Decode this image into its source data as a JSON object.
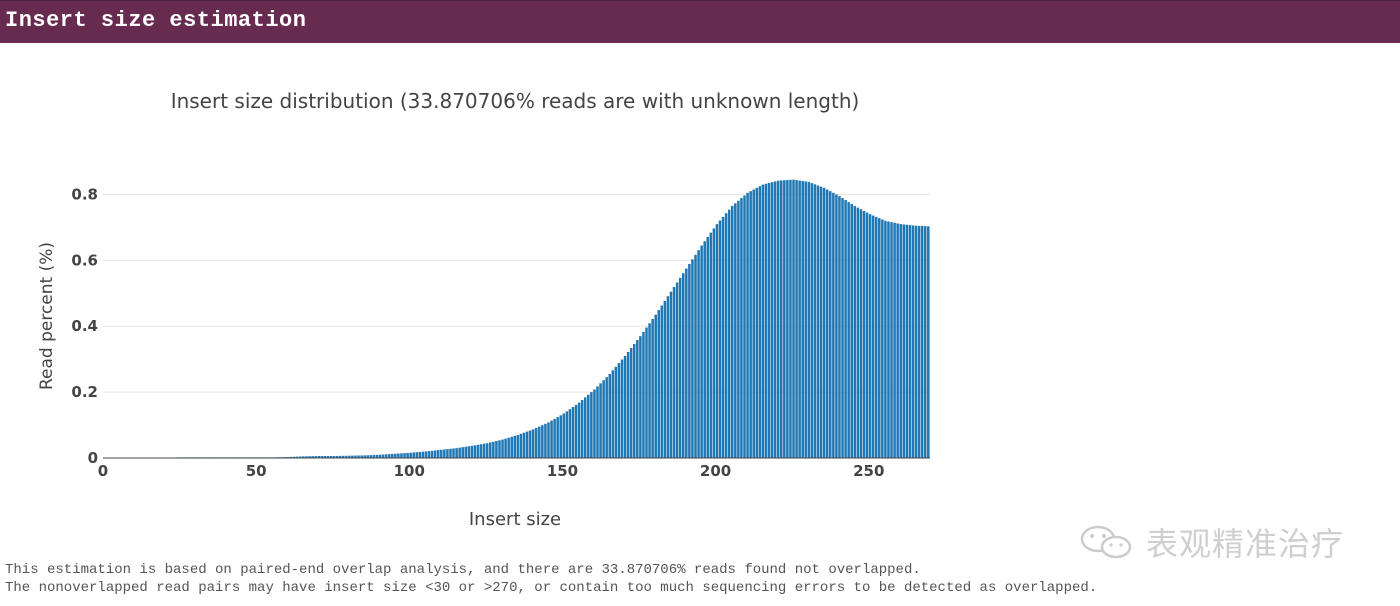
{
  "header": {
    "title": "Insert size estimation"
  },
  "chart_data": {
    "type": "bar",
    "title": "Insert size distribution (33.870706% reads are with unknown length)",
    "xlabel": "Insert size",
    "ylabel": "Read percent (%)",
    "xlim": [
      0,
      270
    ],
    "ylim": [
      0,
      0.85
    ],
    "xticks": [
      0,
      50,
      100,
      150,
      200,
      250
    ],
    "yticks": [
      0,
      0.2,
      0.4,
      0.6,
      0.8
    ],
    "ytick_labels": [
      "0",
      "0.2",
      "0.4",
      "0.6",
      "0.8"
    ],
    "grid": true,
    "bar_color": "#1f77b4",
    "series": [
      {
        "x_start": 0,
        "x_step": 5,
        "values": [
          0.001,
          0.001,
          0.001,
          0.001,
          0.001,
          0.002,
          0.002,
          0.002,
          0.002,
          0.002,
          0.002,
          0.002,
          0.003,
          0.005,
          0.006,
          0.006,
          0.007,
          0.008,
          0.01,
          0.013,
          0.016,
          0.02,
          0.025,
          0.03,
          0.037,
          0.045,
          0.056,
          0.07,
          0.087,
          0.108,
          0.135,
          0.168,
          0.208,
          0.255,
          0.31,
          0.37,
          0.435,
          0.505,
          0.575,
          0.645,
          0.71,
          0.765,
          0.805,
          0.83,
          0.842,
          0.845,
          0.838,
          0.82,
          0.795,
          0.765,
          0.74,
          0.72,
          0.71,
          0.705,
          0.703
        ]
      }
    ]
  },
  "footnote": {
    "line1": "This estimation is based on paired-end overlap analysis, and there are 33.870706% reads found not overlapped.",
    "line2": "The nonoverlapped read pairs may have insert size <30 or >270, or contain too much sequencing errors to be detected as overlapped."
  },
  "watermark": {
    "text": "表观精准治疗",
    "icon": "wechat-icon"
  }
}
